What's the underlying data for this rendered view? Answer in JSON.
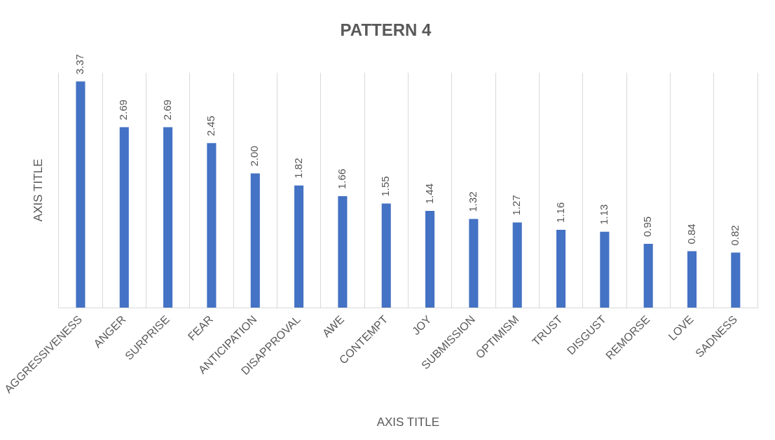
{
  "chart_data": {
    "type": "bar",
    "title": "PATTERN 4",
    "xlabel": "AXIS TITLE",
    "ylabel": "AXIS TITLE",
    "categories": [
      "AGGRESSIVENESS",
      "ANGER",
      "SURPRISE",
      "FEAR",
      "ANTICIPATION",
      "DISAPPROVAL",
      "AWE",
      "CONTEMPT",
      "JOY",
      "SUBMISSION",
      "OPTIMISM",
      "TRUST",
      "DISGUST",
      "REMORSE",
      "LOVE",
      "SADNESS"
    ],
    "values": [
      3.37,
      2.69,
      2.69,
      2.45,
      2.0,
      1.82,
      1.66,
      1.55,
      1.44,
      1.32,
      1.27,
      1.16,
      1.13,
      0.95,
      0.84,
      0.82
    ],
    "value_labels": [
      "3.37",
      "2.69",
      "2.69",
      "2.45",
      "2.00",
      "1.82",
      "1.66",
      "1.55",
      "1.44",
      "1.32",
      "1.27",
      "1.16",
      "1.13",
      "0.95",
      "0.84",
      "0.82"
    ],
    "color": "#4472c4",
    "grid": "x",
    "legend": false
  }
}
